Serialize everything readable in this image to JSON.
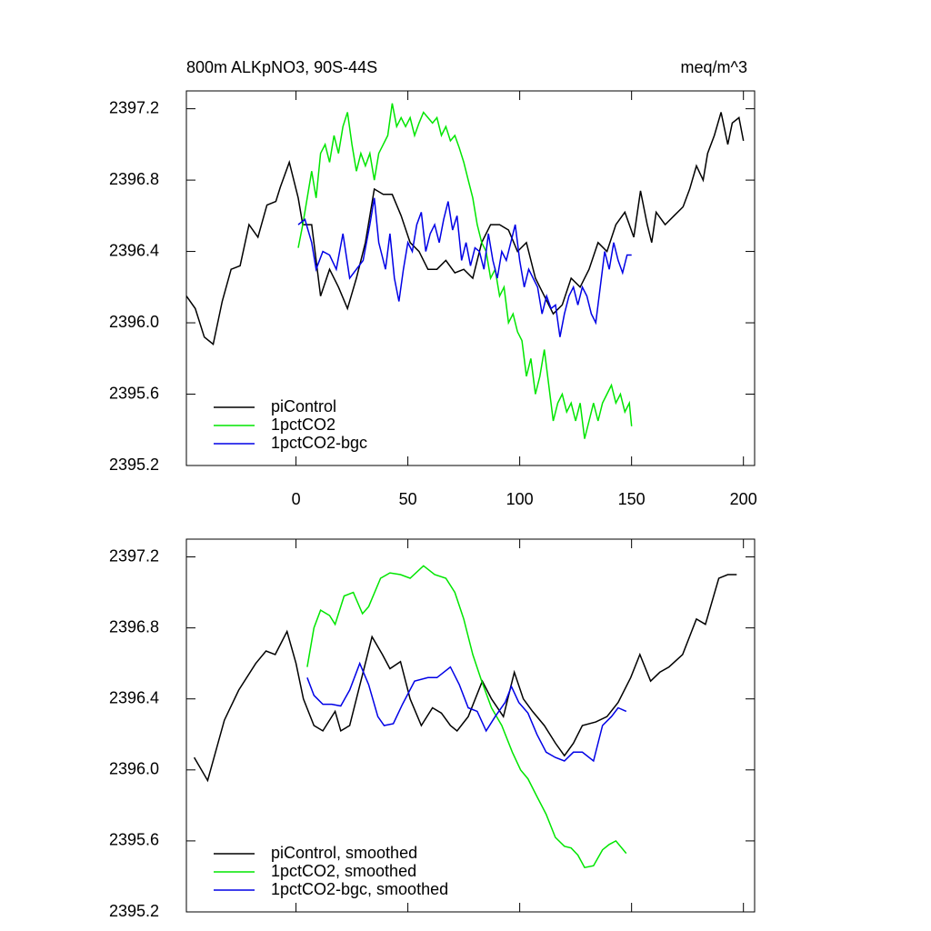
{
  "chart_data": [
    {
      "type": "line",
      "title": "800m ALKpNO3, 90S-44S",
      "units": "meq/m^3",
      "xlim": [
        -49,
        205
      ],
      "xticks": [
        0,
        50,
        100,
        150,
        200
      ],
      "xtick_labels": true,
      "ylim": [
        2395.2,
        2397.3
      ],
      "yticks": [
        2395.2,
        2395.6,
        {
          "value": 2396,
          "label": "2396.0"
        },
        2396.4,
        2396.8,
        2397.2
      ],
      "legend": "lower left",
      "series": [
        {
          "name": "piControl",
          "color": "#000000",
          "x": [
            -49,
            -45,
            -41,
            -37,
            -33,
            -29,
            -25,
            -21,
            -17,
            -13,
            -9,
            -7,
            -3,
            1,
            3,
            7,
            11,
            15,
            19,
            23,
            27,
            31,
            35,
            39,
            43,
            47,
            51,
            55,
            59,
            63,
            67,
            71,
            75,
            79,
            83,
            87,
            91,
            95,
            99,
            103,
            107,
            111,
            115,
            119,
            123,
            127,
            131,
            135,
            139,
            143,
            147,
            151,
            154,
            157,
            159,
            161,
            165,
            169,
            173,
            176,
            179,
            182,
            184,
            187,
            190,
            193,
            195,
            198,
            200
          ],
          "values": [
            2396.15,
            2396.08,
            2395.92,
            2395.88,
            2396.12,
            2396.3,
            2396.32,
            2396.55,
            2396.48,
            2396.66,
            2396.68,
            2396.76,
            2396.9,
            2396.7,
            2396.55,
            2396.55,
            2396.15,
            2396.3,
            2396.2,
            2396.08,
            2396.25,
            2396.45,
            2396.75,
            2396.72,
            2396.72,
            2396.6,
            2396.45,
            2396.4,
            2396.3,
            2396.3,
            2396.35,
            2396.28,
            2396.3,
            2396.25,
            2396.45,
            2396.55,
            2396.55,
            2396.52,
            2396.4,
            2396.45,
            2396.25,
            2396.15,
            2396.05,
            2396.1,
            2396.25,
            2396.2,
            2396.3,
            2396.45,
            2396.4,
            2396.55,
            2396.62,
            2396.48,
            2396.74,
            2396.55,
            2396.45,
            2396.62,
            2396.55,
            2396.6,
            2396.65,
            2396.75,
            2396.88,
            2396.8,
            2396.95,
            2397.05,
            2397.18,
            2397.0,
            2397.12,
            2397.15,
            2397.02
          ]
        },
        {
          "name": "1pctCO2",
          "color": "#00e600",
          "x": [
            1,
            3,
            5,
            7,
            9,
            11,
            13,
            15,
            17,
            19,
            21,
            23,
            25,
            27,
            29,
            31,
            33,
            35,
            37,
            39,
            41,
            43,
            45,
            47,
            49,
            51,
            53,
            55,
            57,
            59,
            61,
            63,
            65,
            67,
            69,
            71,
            73,
            75,
            77,
            79,
            81,
            83,
            85,
            87,
            89,
            91,
            93,
            95,
            97,
            99,
            101,
            103,
            105,
            107,
            109,
            111,
            113,
            115,
            117,
            119,
            121,
            123,
            125,
            127,
            129,
            131,
            133,
            135,
            137,
            139,
            141,
            143,
            145,
            147,
            149,
            150
          ],
          "values": [
            2396.42,
            2396.55,
            2396.7,
            2396.85,
            2396.7,
            2396.95,
            2397.0,
            2396.9,
            2397.05,
            2396.95,
            2397.1,
            2397.18,
            2397.0,
            2396.85,
            2396.95,
            2396.88,
            2396.95,
            2396.8,
            2396.95,
            2397.0,
            2397.05,
            2397.23,
            2397.1,
            2397.15,
            2397.1,
            2397.15,
            2397.05,
            2397.12,
            2397.18,
            2397.15,
            2397.12,
            2397.15,
            2397.05,
            2397.1,
            2397.02,
            2397.05,
            2396.98,
            2396.9,
            2396.8,
            2396.7,
            2396.55,
            2396.45,
            2396.4,
            2396.25,
            2396.3,
            2396.15,
            2396.2,
            2396.0,
            2396.05,
            2395.95,
            2395.9,
            2395.7,
            2395.8,
            2395.6,
            2395.7,
            2395.85,
            2395.65,
            2395.45,
            2395.55,
            2395.6,
            2395.5,
            2395.55,
            2395.45,
            2395.55,
            2395.35,
            2395.45,
            2395.55,
            2395.45,
            2395.55,
            2395.6,
            2395.65,
            2395.55,
            2395.6,
            2395.5,
            2395.55,
            2395.42
          ]
        },
        {
          "name": "1pctCO2-bgc",
          "color": "#0000e6",
          "x": [
            1,
            4,
            7,
            9,
            12,
            15,
            18,
            21,
            24,
            27,
            30,
            33,
            35,
            37,
            40,
            42,
            44,
            46,
            48,
            50,
            52,
            54,
            56,
            58,
            60,
            62,
            64,
            66,
            68,
            70,
            72,
            74,
            76,
            78,
            80,
            82,
            84,
            86,
            88,
            90,
            92,
            94,
            96,
            98,
            100,
            102,
            104,
            106,
            108,
            110,
            112,
            114,
            116,
            118,
            120,
            122,
            124,
            126,
            128,
            130,
            132,
            134,
            136,
            138,
            140,
            142,
            144,
            146,
            148,
            150
          ],
          "values": [
            2396.55,
            2396.58,
            2396.45,
            2396.3,
            2396.4,
            2396.38,
            2396.3,
            2396.5,
            2396.25,
            2396.3,
            2396.35,
            2396.55,
            2396.7,
            2396.45,
            2396.3,
            2396.5,
            2396.25,
            2396.12,
            2396.3,
            2396.45,
            2396.4,
            2396.55,
            2396.62,
            2396.4,
            2396.5,
            2396.55,
            2396.45,
            2396.58,
            2396.68,
            2396.52,
            2396.6,
            2396.35,
            2396.45,
            2396.32,
            2396.42,
            2396.4,
            2396.3,
            2396.5,
            2396.35,
            2396.25,
            2396.4,
            2396.35,
            2396.45,
            2396.55,
            2396.35,
            2396.2,
            2396.3,
            2396.25,
            2396.2,
            2396.05,
            2396.15,
            2396.08,
            2396.1,
            2395.92,
            2396.05,
            2396.15,
            2396.2,
            2396.1,
            2396.2,
            2396.15,
            2396.05,
            2396.0,
            2396.2,
            2396.4,
            2396.3,
            2396.45,
            2396.35,
            2396.28,
            2396.38,
            2396.38
          ]
        }
      ]
    },
    {
      "type": "line",
      "xlim": [
        -49,
        205
      ],
      "xticks": [
        0,
        50,
        100,
        150,
        200
      ],
      "xtick_labels": false,
      "ylim": [
        2395.2,
        2397.3
      ],
      "yticks": [
        2395.2,
        2395.6,
        {
          "value": 2396,
          "label": "2396.0"
        },
        2396.4,
        2396.8,
        2397.2
      ],
      "legend": "lower left",
      "series": [
        {
          "name": "piControl, smoothed",
          "color": "#000000",
          "x": [
            -45.5,
            -39.5,
            -32,
            -25.6,
            -18,
            -13.4,
            -9.3,
            -4,
            0,
            3.3,
            8,
            12,
            17.5,
            20,
            24,
            29,
            34,
            38.6,
            42,
            46.7,
            51,
            56,
            61,
            65,
            69,
            72,
            77,
            83.3,
            87.4,
            92.7,
            97.6,
            101.6,
            105.7,
            111,
            116,
            120,
            124,
            128,
            134,
            139,
            144,
            149.6,
            153.7,
            158.5,
            162.6,
            166.7,
            172.8,
            179,
            183,
            189,
            193,
            197
          ],
          "values": [
            2396.07,
            2395.94,
            2396.28,
            2396.45,
            2396.6,
            2396.67,
            2396.65,
            2396.78,
            2396.6,
            2396.4,
            2396.25,
            2396.22,
            2396.33,
            2396.22,
            2396.25,
            2396.5,
            2396.75,
            2396.65,
            2396.57,
            2396.61,
            2396.4,
            2396.25,
            2396.35,
            2396.32,
            2396.25,
            2396.22,
            2396.3,
            2396.5,
            2396.4,
            2396.3,
            2396.55,
            2396.4,
            2396.33,
            2396.25,
            2396.15,
            2396.08,
            2396.15,
            2396.25,
            2396.27,
            2396.3,
            2396.38,
            2396.52,
            2396.65,
            2396.5,
            2396.55,
            2396.58,
            2396.65,
            2396.85,
            2396.82,
            2397.08,
            2397.1,
            2397.1
          ]
        },
        {
          "name": "1pctCO2, smoothed",
          "color": "#00e600",
          "x": [
            5,
            8,
            11,
            15,
            17.5,
            21.5,
            25.6,
            29.7,
            32.5,
            37.8,
            42,
            46.7,
            51,
            57,
            62,
            67,
            71,
            75,
            79,
            83,
            87.4,
            92,
            96.7,
            100.4,
            103.7,
            107.7,
            111.8,
            115.9,
            120,
            123,
            126,
            129,
            133,
            137,
            140,
            143,
            147.6
          ],
          "values": [
            2396.58,
            2396.8,
            2396.9,
            2396.87,
            2396.82,
            2396.98,
            2397.0,
            2396.88,
            2396.92,
            2397.08,
            2397.11,
            2397.1,
            2397.08,
            2397.15,
            2397.1,
            2397.08,
            2397.0,
            2396.85,
            2396.65,
            2396.5,
            2396.35,
            2396.25,
            2396.1,
            2396.0,
            2395.95,
            2395.85,
            2395.75,
            2395.62,
            2395.57,
            2395.56,
            2395.52,
            2395.45,
            2395.46,
            2395.55,
            2395.58,
            2395.6,
            2395.53
          ]
        },
        {
          "name": "1pctCO2-bgc, smoothed",
          "color": "#0000e6",
          "x": [
            5,
            8,
            12,
            16,
            20,
            24,
            28.5,
            32.5,
            36.6,
            39.4,
            43.5,
            47.6,
            53,
            59,
            63,
            69,
            73,
            77,
            81,
            85,
            89,
            93.5,
            96.3,
            99.6,
            103.7,
            107.7,
            111.8,
            115.9,
            120,
            124,
            128,
            133,
            137,
            141,
            144,
            147.6
          ],
          "values": [
            2396.52,
            2396.42,
            2396.37,
            2396.37,
            2396.36,
            2396.45,
            2396.6,
            2396.48,
            2396.3,
            2396.25,
            2396.26,
            2396.37,
            2396.5,
            2396.52,
            2396.52,
            2396.58,
            2396.48,
            2396.35,
            2396.33,
            2396.22,
            2396.3,
            2396.38,
            2396.47,
            2396.38,
            2396.32,
            2396.2,
            2396.1,
            2396.07,
            2396.05,
            2396.1,
            2396.1,
            2396.05,
            2396.25,
            2396.3,
            2396.35,
            2396.33
          ]
        }
      ]
    }
  ]
}
